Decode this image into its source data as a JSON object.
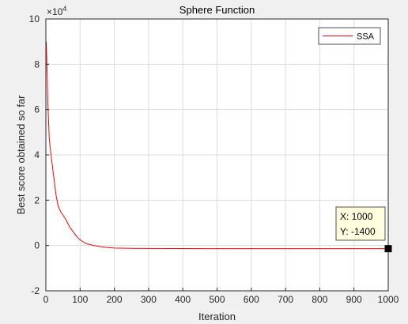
{
  "chart_data": {
    "type": "line",
    "title": "Sphere Function",
    "xlabel": "Iteration",
    "ylabel": "Best score obtained so far",
    "xlim": [
      0,
      1000
    ],
    "ylim": [
      -20000,
      100000
    ],
    "x_ticks": [
      0,
      100,
      200,
      300,
      400,
      500,
      600,
      700,
      800,
      900,
      1000
    ],
    "y_ticks": [
      -2,
      0,
      2,
      4,
      6,
      8,
      10
    ],
    "y_multiplier_base": "10",
    "y_multiplier_exp": "4",
    "y_multiplier": "×10^4",
    "grid": true,
    "legend_position": "top-right",
    "series": [
      {
        "name": "SSA",
        "color": "#ff0000",
        "x": [
          1,
          3,
          6,
          10,
          15,
          20,
          25,
          30,
          35,
          40,
          45,
          50,
          60,
          70,
          80,
          90,
          100,
          110,
          120,
          140,
          160,
          180,
          200,
          250,
          300,
          400,
          500,
          600,
          700,
          800,
          900,
          1000
        ],
        "y": [
          90000,
          80000,
          62000,
          47000,
          40000,
          34000,
          28000,
          22000,
          18000,
          16000,
          14500,
          13500,
          11000,
          8000,
          6000,
          4000,
          2500,
          1500,
          700,
          0,
          -500,
          -900,
          -1100,
          -1250,
          -1300,
          -1350,
          -1380,
          -1390,
          -1395,
          -1398,
          -1400,
          -1400
        ]
      }
    ],
    "datatip": {
      "x_label": "X: 1000",
      "y_label": "Y: -1400",
      "x": 1000,
      "y": -1400
    }
  }
}
